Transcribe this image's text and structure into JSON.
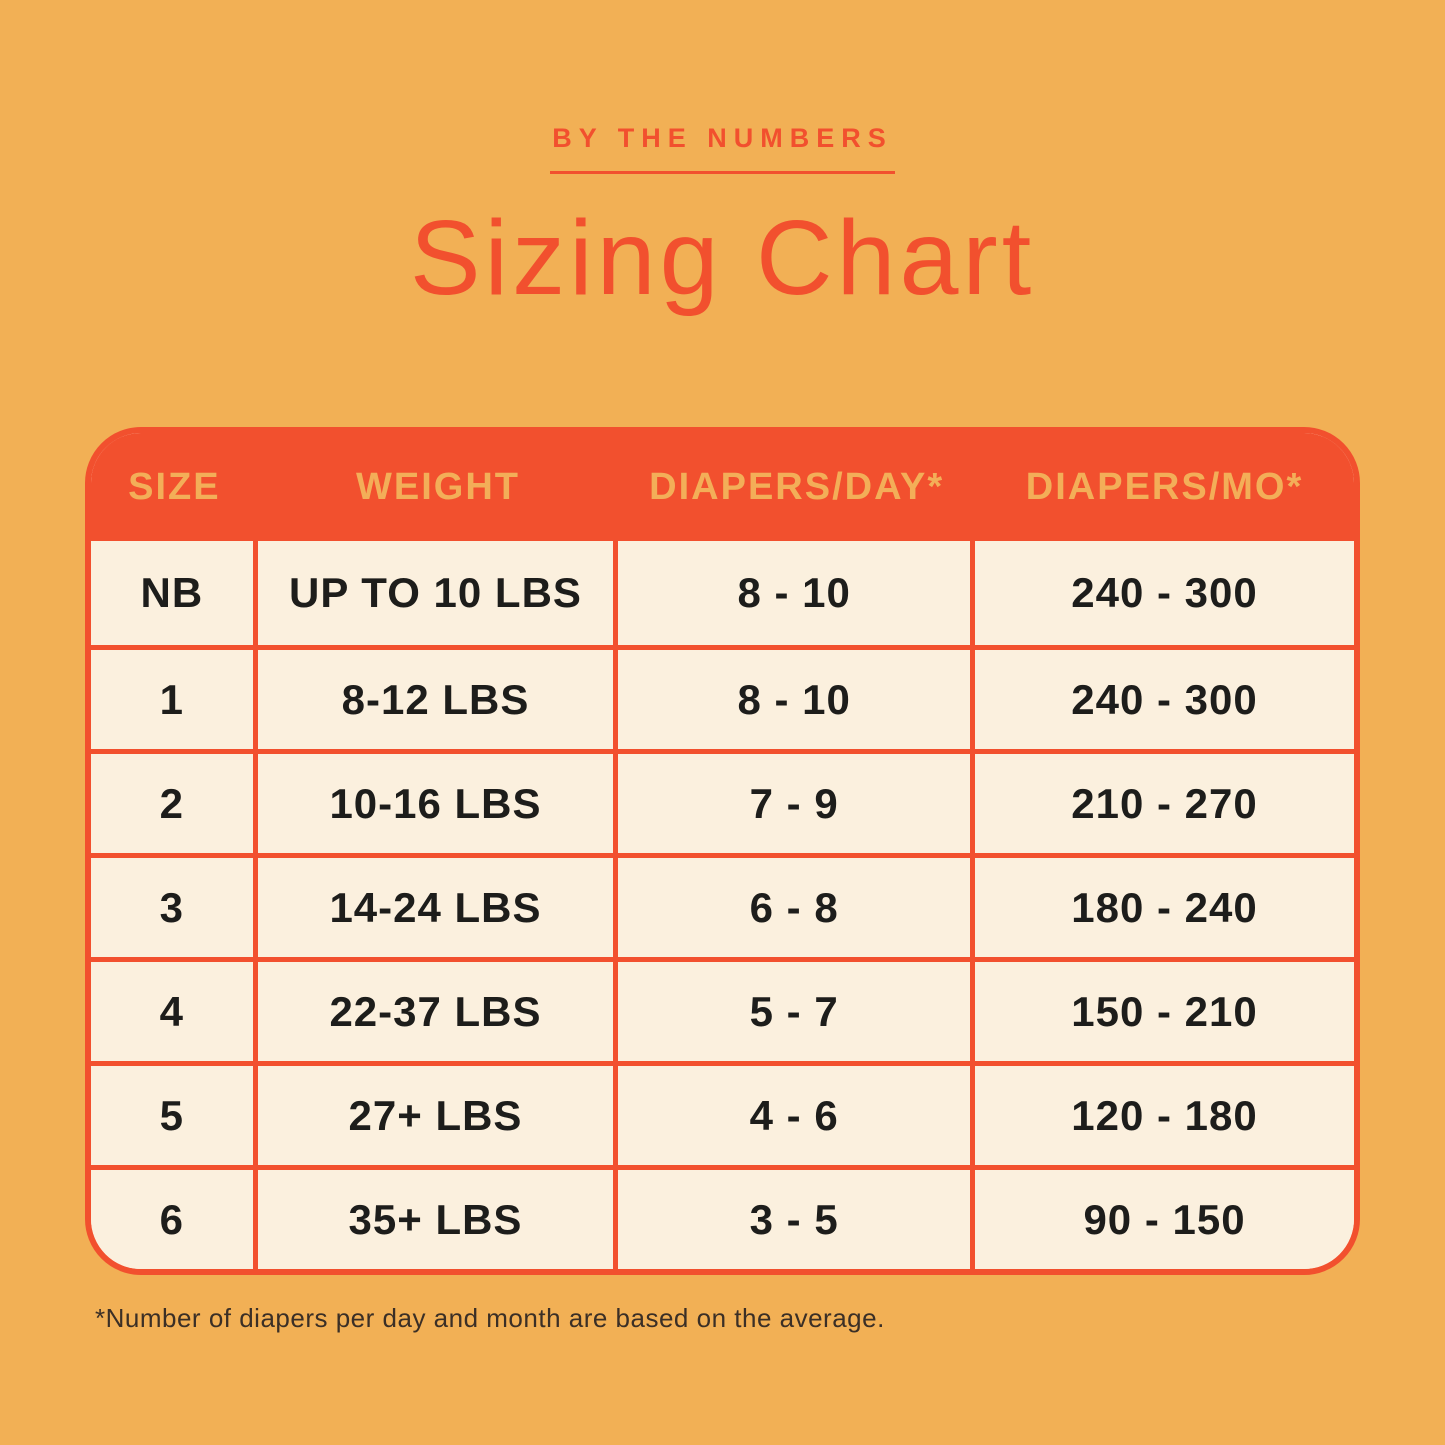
{
  "chart_data": {
    "type": "table",
    "subtitle": "BY THE NUMBERS",
    "title": "Sizing Chart",
    "columns": [
      "SIZE",
      "WEIGHT",
      "DIAPERS/DAY*",
      "DIAPERS/MO*"
    ],
    "rows": [
      [
        "NB",
        "UP TO 10 LBS",
        "8 - 10",
        "240 - 300"
      ],
      [
        "1",
        "8-12 LBS",
        "8 - 10",
        "240 - 300"
      ],
      [
        "2",
        "10-16 LBS",
        "7 - 9",
        "210 - 270"
      ],
      [
        "3",
        "14-24 LBS",
        "6 - 8",
        "180 - 240"
      ],
      [
        "4",
        "22-37 LBS",
        "5 - 7",
        "150 - 210"
      ],
      [
        "5",
        "27+ LBS",
        "4 - 6",
        "120 - 180"
      ],
      [
        "6",
        "35+ LBS",
        "3 - 5",
        "90 - 150"
      ]
    ],
    "footnote": "*Number of diapers per day and month are based on the average.",
    "layout": {
      "header_position": "top",
      "grid": "on"
    }
  },
  "colors": {
    "background": "#F2B055",
    "accent_red": "#F2502E",
    "table_body_cream": "#FBF0DE",
    "header_label_amber": "#F3AE58",
    "cell_text": "#1D1D1B",
    "footnote_text": "#3B2F26"
  }
}
